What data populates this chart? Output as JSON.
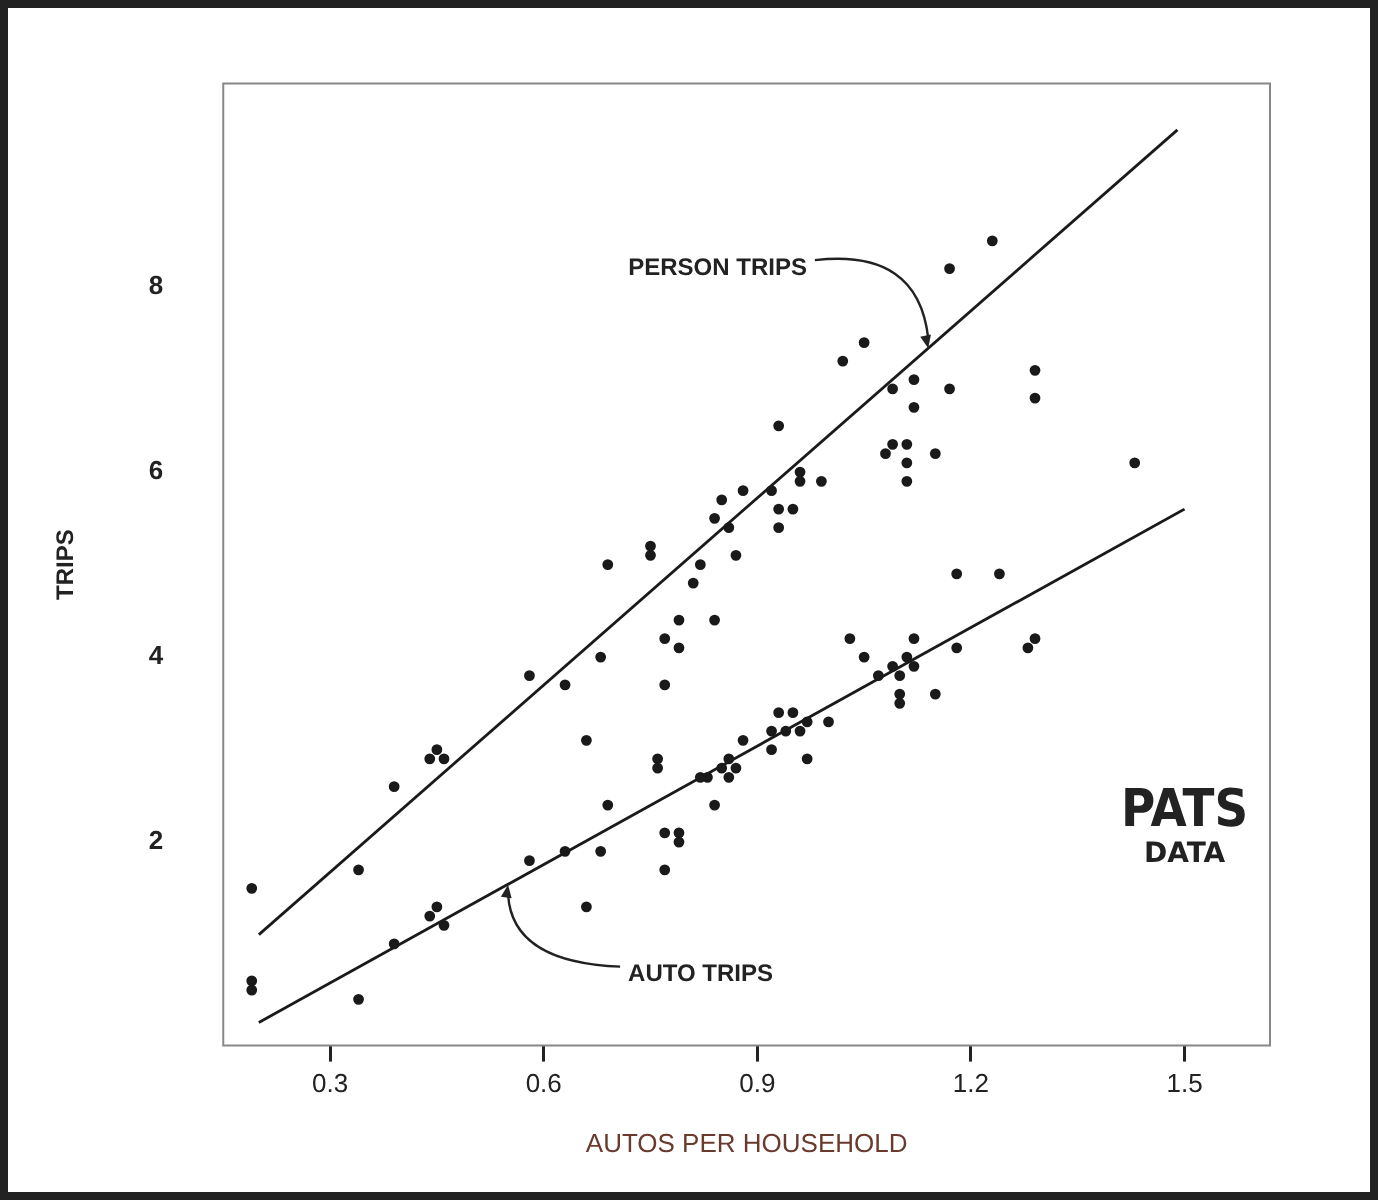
{
  "chart_data": {
    "type": "scatter",
    "xlabel": "AUTOS PER HOUSEHOLD",
    "ylabel": "TRIPS",
    "xlim": [
      0.15,
      1.62
    ],
    "ylim": [
      -0.2,
      10.2
    ],
    "xticks": [
      0.3,
      0.6,
      0.9,
      1.2,
      1.5
    ],
    "yticks": [
      2,
      4,
      6,
      8
    ],
    "grid": false,
    "legend": false,
    "annotations": [
      {
        "text": "PERSON TRIPS",
        "x": 1.14,
        "y": 7.34
      },
      {
        "text": "AUTO TRIPS",
        "x": 0.55,
        "y": 1.54
      },
      "PATS\nDATA"
    ],
    "series": [
      {
        "marker": "circle",
        "color": "#1a1a1a",
        "x": [
          0.19,
          0.34,
          0.39,
          0.44,
          0.45,
          0.46,
          0.58,
          0.63,
          0.68,
          0.66,
          0.93,
          0.96,
          0.96,
          0.92,
          0.88,
          0.99,
          0.95,
          0.93,
          0.93,
          0.85,
          0.84,
          0.86,
          0.75,
          0.75,
          0.69,
          0.82,
          0.87,
          0.81,
          0.79,
          0.84,
          0.77,
          0.79,
          0.77,
          1.08,
          1.09,
          1.11,
          1.11,
          1.11,
          1.15,
          1.23,
          1.17,
          1.05,
          1.02,
          1.12,
          1.09,
          1.12,
          1.17,
          1.29,
          1.29,
          1.43
        ],
        "values": [
          1.5,
          1.7,
          2.6,
          2.9,
          3.0,
          2.9,
          3.8,
          3.7,
          4.0,
          3.1,
          6.5,
          6.0,
          5.9,
          5.8,
          5.8,
          5.9,
          5.6,
          5.6,
          5.4,
          5.7,
          5.5,
          5.4,
          5.2,
          5.1,
          5.0,
          5.0,
          5.1,
          4.8,
          4.4,
          4.4,
          4.2,
          4.1,
          3.7,
          6.2,
          6.3,
          6.3,
          6.1,
          5.9,
          6.2,
          8.5,
          8.2,
          7.4,
          7.2,
          7.0,
          6.9,
          6.7,
          6.9,
          7.1,
          6.8,
          6.1
        ]
      },
      {
        "marker": "circle",
        "color": "#1a1a1a",
        "x": [
          0.19,
          0.19,
          0.34,
          0.39,
          0.44,
          0.45,
          0.46,
          0.58,
          0.63,
          0.66,
          0.68,
          0.69,
          0.77,
          0.79,
          0.79,
          0.77,
          0.76,
          0.76,
          0.84,
          0.83,
          0.82,
          0.85,
          0.86,
          0.87,
          0.86,
          0.92,
          0.97,
          0.88,
          0.92,
          0.94,
          0.96,
          1.0,
          0.97,
          0.93,
          0.95,
          1.03,
          1.05,
          1.07,
          1.09,
          1.1,
          1.11,
          1.12,
          1.12,
          1.1,
          1.1,
          1.15,
          1.18,
          1.18,
          1.24,
          1.28,
          1.29
        ],
        "values": [
          0.5,
          0.4,
          0.3,
          0.9,
          1.2,
          1.3,
          1.1,
          1.8,
          1.9,
          1.3,
          1.9,
          2.4,
          1.7,
          2.1,
          2.0,
          2.1,
          2.9,
          2.8,
          2.4,
          2.7,
          2.7,
          2.8,
          2.7,
          2.8,
          2.9,
          3.0,
          2.9,
          3.1,
          3.2,
          3.2,
          3.2,
          3.3,
          3.3,
          3.4,
          3.4,
          4.2,
          4.0,
          3.8,
          3.9,
          3.8,
          4.0,
          3.9,
          4.2,
          3.6,
          3.5,
          3.6,
          4.1,
          4.9,
          4.9,
          4.1,
          4.2
        ]
      },
      {
        "type": "line",
        "marker": "none",
        "color": "#1a1a1a",
        "x": [
          0.2,
          1.49
        ],
        "values": [
          1.0,
          9.7
        ]
      },
      {
        "type": "line",
        "marker": "none",
        "color": "#1a1a1a",
        "x": [
          0.2,
          1.5
        ],
        "values": [
          0.05,
          5.6
        ]
      }
    ]
  }
}
